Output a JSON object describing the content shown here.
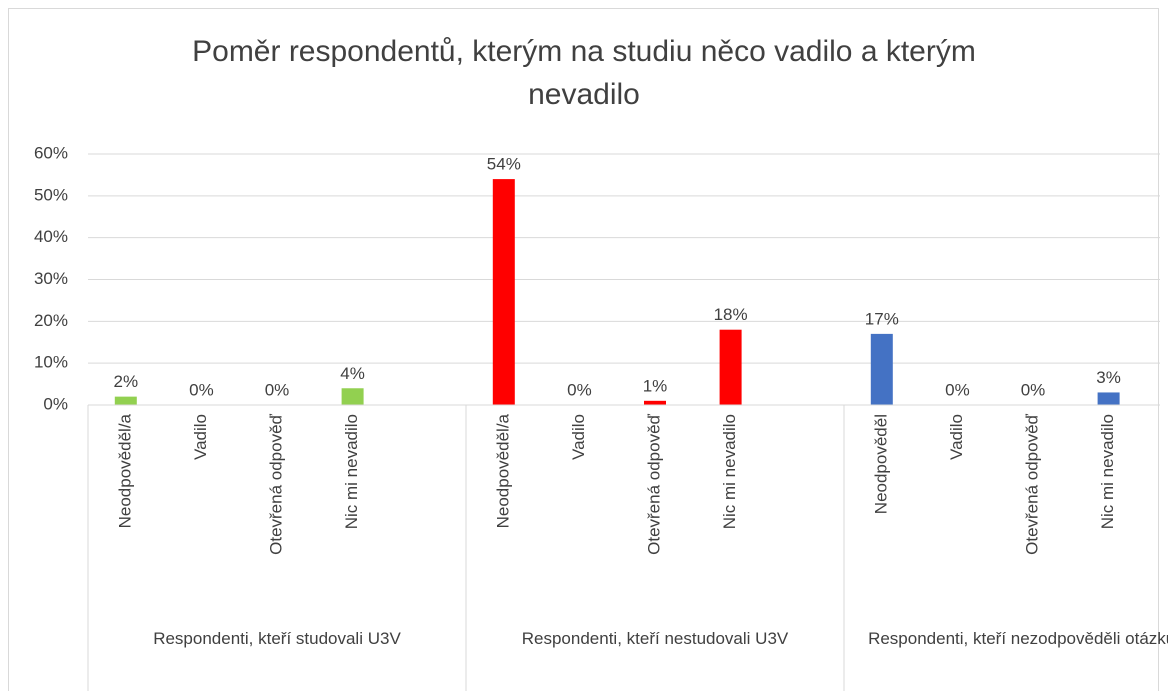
{
  "chart_data": {
    "type": "bar",
    "title": "Poměr respondentů, kterým na studiu něco vadilo a kterým nevadilo",
    "groups": [
      {
        "name": "Respondenti, kteří studovali U3V",
        "color": "#92d050",
        "categories": [
          "Neodpověděl/a",
          "Vadilo",
          "Otevřená odpověď",
          "Nic mi nevadilo"
        ],
        "values": [
          2,
          0,
          0,
          4
        ],
        "value_labels": [
          "2%",
          "0%",
          "0%",
          "4%"
        ]
      },
      {
        "name": "Respondenti, kteří nestudovali U3V",
        "color": "#ff0000",
        "categories": [
          "Neodpověděl/a",
          "Vadilo",
          "Otevřená odpověď",
          "Nic mi nevadilo"
        ],
        "values": [
          54,
          0,
          1,
          18
        ],
        "value_labels": [
          "54%",
          "0%",
          "1%",
          "18%"
        ]
      },
      {
        "name": "Respondenti, kteří nezodpověděli otázku O.",
        "color": "#4472c4",
        "categories": [
          "Neodpověděl",
          "Vadilo",
          "Otevřená odpověď",
          "Nic mi nevadilo"
        ],
        "values": [
          17,
          0,
          0,
          3
        ],
        "value_labels": [
          "17%",
          "0%",
          "0%",
          "3%"
        ]
      }
    ],
    "ylim": [
      0,
      60
    ],
    "yticks": [
      {
        "value": 0,
        "label": "0%"
      },
      {
        "value": 10,
        "label": "10%"
      },
      {
        "value": 20,
        "label": "20%"
      },
      {
        "value": 30,
        "label": "30%"
      },
      {
        "value": 40,
        "label": "40%"
      },
      {
        "value": 50,
        "label": "50%"
      },
      {
        "value": 60,
        "label": "60%"
      }
    ],
    "grid": true
  }
}
